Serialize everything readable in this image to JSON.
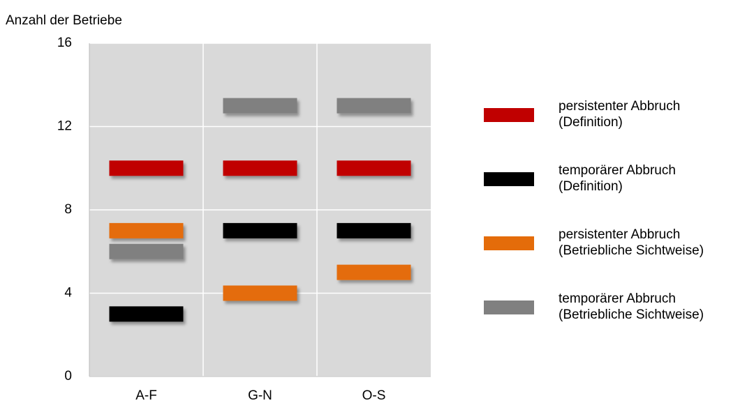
{
  "chart_data": {
    "type": "marker",
    "y_label": "Anzahl der Betriebe",
    "categories": [
      "A-F",
      "G-N",
      "O-S"
    ],
    "series": [
      {
        "name": "persistenter Abbruch (Definition)",
        "color": "#c00000",
        "values": [
          10,
          10,
          10
        ]
      },
      {
        "name": "temporärer Abbruch (Definition)",
        "color": "#000000",
        "values": [
          3,
          7,
          7
        ]
      },
      {
        "name": "persistenter Abbruch (Betriebliche Sichtweise)",
        "color": "#e46c0a",
        "values": [
          7,
          4,
          5
        ]
      },
      {
        "name": "temporärer Abbruch (Betriebliche Sichtweise)",
        "color": "#808080",
        "values": [
          6,
          13,
          13
        ]
      }
    ],
    "ylim": [
      0,
      16
    ],
    "yticks": [
      0,
      4,
      8,
      12,
      16
    ],
    "grid": true,
    "legend": "right"
  }
}
